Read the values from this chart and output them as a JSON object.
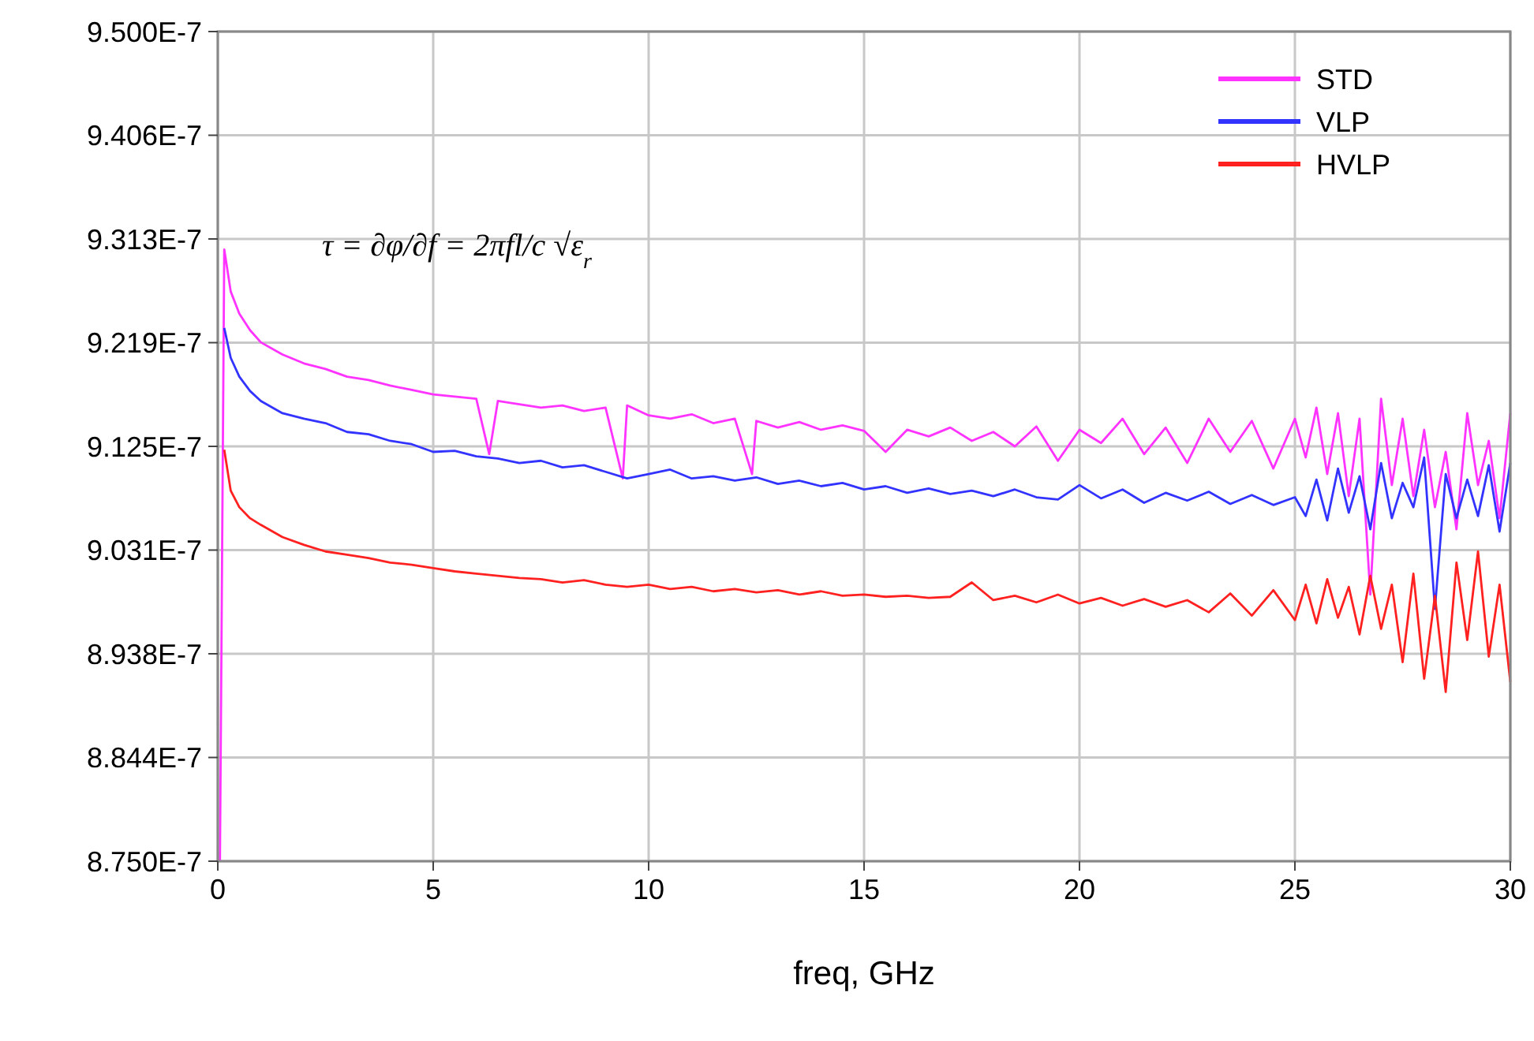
{
  "chart_data": {
    "type": "line",
    "xlabel": "freq, GHz",
    "xlim": [
      0,
      30
    ],
    "xticks": [
      0,
      5,
      10,
      15,
      20,
      25,
      30
    ],
    "ylim": [
      8.75e-07,
      9.5e-07
    ],
    "yticks": [
      {
        "value": 8.75e-07,
        "label": "8.750E-7"
      },
      {
        "value": 8.84375e-07,
        "label": "8.844E-7"
      },
      {
        "value": 8.9375e-07,
        "label": "8.938E-7"
      },
      {
        "value": 9.03125e-07,
        "label": "9.031E-7"
      },
      {
        "value": 9.125e-07,
        "label": "9.125E-7"
      },
      {
        "value": 9.21875e-07,
        "label": "9.219E-7"
      },
      {
        "value": 9.3125e-07,
        "label": "9.313E-7"
      },
      {
        "value": 9.40625e-07,
        "label": "9.406E-7"
      },
      {
        "value": 9.5e-07,
        "label": "9.500E-7"
      }
    ],
    "grid": true,
    "legend": "top right",
    "annotations": [
      "τ = ∂φ/∂f = 2πfl/c √ε$_{r}$"
    ],
    "series": [
      {
        "name": "STD",
        "color": "#ff33ff",
        "x": [
          0.05,
          0.15,
          0.3,
          0.5,
          0.75,
          1,
          1.5,
          2,
          2.5,
          3,
          3.5,
          4,
          4.5,
          5,
          5.5,
          6,
          6.3,
          6.5,
          7,
          7.5,
          8,
          8.5,
          9,
          9.4,
          9.5,
          10,
          10.5,
          11,
          11.5,
          12,
          12.4,
          12.5,
          13,
          13.5,
          14,
          14.5,
          15,
          15.5,
          16,
          16.5,
          17,
          17.5,
          18,
          18.5,
          19,
          19.5,
          20,
          20.5,
          21,
          21.5,
          22,
          22.5,
          23,
          23.5,
          24,
          24.5,
          25,
          25.25,
          25.5,
          25.75,
          26,
          26.25,
          26.5,
          26.75,
          27,
          27.25,
          27.5,
          27.75,
          28,
          28.25,
          28.5,
          28.75,
          29,
          29.25,
          29.5,
          29.75,
          30
        ],
        "values": [
          8.75e-07,
          9.303e-07,
          9.265e-07,
          9.245e-07,
          9.23e-07,
          9.219e-07,
          9.208e-07,
          9.2e-07,
          9.195e-07,
          9.188e-07,
          9.185e-07,
          9.18e-07,
          9.176e-07,
          9.172e-07,
          9.17e-07,
          9.168e-07,
          9.118e-07,
          9.166e-07,
          9.163e-07,
          9.16e-07,
          9.162e-07,
          9.157e-07,
          9.16e-07,
          9.096e-07,
          9.162e-07,
          9.153e-07,
          9.15e-07,
          9.154e-07,
          9.146e-07,
          9.15e-07,
          9.1e-07,
          9.148e-07,
          9.142e-07,
          9.147e-07,
          9.14e-07,
          9.144e-07,
          9.139e-07,
          9.12e-07,
          9.14e-07,
          9.134e-07,
          9.142e-07,
          9.13e-07,
          9.138e-07,
          9.125e-07,
          9.143e-07,
          9.112e-07,
          9.14e-07,
          9.128e-07,
          9.15e-07,
          9.118e-07,
          9.142e-07,
          9.11e-07,
          9.15e-07,
          9.12e-07,
          9.148e-07,
          9.105e-07,
          9.15e-07,
          9.115e-07,
          9.16e-07,
          9.1e-07,
          9.155e-07,
          9.08e-07,
          9.15e-07,
          8.991e-07,
          9.168e-07,
          9.09e-07,
          9.15e-07,
          9.08e-07,
          9.14e-07,
          9.07e-07,
          9.12e-07,
          9.05e-07,
          9.155e-07,
          9.09e-07,
          9.13e-07,
          9.06e-07,
          9.155e-07
        ]
      },
      {
        "name": "VLP",
        "color": "#3333ff",
        "x": [
          0.15,
          0.3,
          0.5,
          0.75,
          1,
          1.5,
          2,
          2.5,
          3,
          3.5,
          4,
          4.5,
          5,
          5.5,
          6,
          6.5,
          7,
          7.5,
          8,
          8.5,
          9,
          9.5,
          10,
          10.5,
          11,
          11.5,
          12,
          12.5,
          13,
          13.5,
          14,
          14.5,
          15,
          15.5,
          16,
          16.5,
          17,
          17.5,
          18,
          18.5,
          19,
          19.5,
          20,
          20.5,
          21,
          21.5,
          22,
          22.5,
          23,
          23.5,
          24,
          24.5,
          25,
          25.25,
          25.5,
          25.75,
          26,
          26.25,
          26.5,
          26.75,
          27,
          27.25,
          27.5,
          27.75,
          28,
          28.25,
          28.5,
          28.75,
          29,
          29.25,
          29.5,
          29.75,
          30
        ],
        "values": [
          9.232e-07,
          9.205e-07,
          9.188e-07,
          9.175e-07,
          9.166e-07,
          9.155e-07,
          9.15e-07,
          9.146e-07,
          9.138e-07,
          9.136e-07,
          9.13e-07,
          9.127e-07,
          9.12e-07,
          9.121e-07,
          9.116e-07,
          9.114e-07,
          9.11e-07,
          9.112e-07,
          9.106e-07,
          9.108e-07,
          9.102e-07,
          9.096e-07,
          9.1e-07,
          9.104e-07,
          9.096e-07,
          9.098e-07,
          9.094e-07,
          9.097e-07,
          9.091e-07,
          9.094e-07,
          9.089e-07,
          9.092e-07,
          9.086e-07,
          9.089e-07,
          9.083e-07,
          9.087e-07,
          9.082e-07,
          9.085e-07,
          9.08e-07,
          9.086e-07,
          9.079e-07,
          9.077e-07,
          9.09e-07,
          9.078e-07,
          9.086e-07,
          9.074e-07,
          9.083e-07,
          9.076e-07,
          9.084e-07,
          9.073e-07,
          9.081e-07,
          9.072e-07,
          9.079e-07,
          9.062e-07,
          9.095e-07,
          9.058e-07,
          9.105e-07,
          9.065e-07,
          9.098e-07,
          9.05e-07,
          9.11e-07,
          9.06e-07,
          9.092e-07,
          9.07e-07,
          9.115e-07,
          8.978e-07,
          9.1e-07,
          9.06e-07,
          9.095e-07,
          9.062e-07,
          9.108e-07,
          9.048e-07,
          9.11e-07
        ]
      },
      {
        "name": "HVLP",
        "color": "#ff2020",
        "x": [
          0.15,
          0.3,
          0.5,
          0.75,
          1,
          1.5,
          2,
          2.5,
          3,
          3.5,
          4,
          4.5,
          5,
          5.5,
          6,
          6.5,
          7,
          7.5,
          8,
          8.5,
          9,
          9.5,
          10,
          10.5,
          11,
          11.5,
          12,
          12.5,
          13,
          13.5,
          14,
          14.5,
          15,
          15.5,
          16,
          16.5,
          17,
          17.5,
          18,
          18.5,
          19,
          19.5,
          20,
          20.5,
          21,
          21.5,
          22,
          22.5,
          23,
          23.5,
          24,
          24.5,
          25,
          25.25,
          25.5,
          25.75,
          26,
          26.25,
          26.5,
          26.75,
          27,
          27.25,
          27.5,
          27.75,
          28,
          28.25,
          28.5,
          28.75,
          29,
          29.25,
          29.5,
          29.75,
          30
        ],
        "values": [
          9.122e-07,
          9.085e-07,
          9.07e-07,
          9.06e-07,
          9.054e-07,
          9.043e-07,
          9.036e-07,
          9.03e-07,
          9.027e-07,
          9.024e-07,
          9.02e-07,
          9.018e-07,
          9.015e-07,
          9.012e-07,
          9.01e-07,
          9.008e-07,
          9.006e-07,
          9.005e-07,
          9.002e-07,
          9.004e-07,
          9e-07,
          8.998e-07,
          9e-07,
          8.996e-07,
          8.998e-07,
          8.994e-07,
          8.996e-07,
          8.993e-07,
          8.995e-07,
          8.991e-07,
          8.994e-07,
          8.99e-07,
          8.991e-07,
          8.989e-07,
          8.99e-07,
          8.988e-07,
          8.989e-07,
          9.002e-07,
          8.986e-07,
          8.99e-07,
          8.984e-07,
          8.991e-07,
          8.983e-07,
          8.988e-07,
          8.981e-07,
          8.987e-07,
          8.98e-07,
          8.986e-07,
          8.975e-07,
          8.992e-07,
          8.972e-07,
          8.995e-07,
          8.968e-07,
          9e-07,
          8.965e-07,
          9.005e-07,
          8.97e-07,
          8.998e-07,
          8.955e-07,
          9.008e-07,
          8.96e-07,
          9e-07,
          8.93e-07,
          9.01e-07,
          8.915e-07,
          8.99e-07,
          8.903e-07,
          9.02e-07,
          8.95e-07,
          9.03e-07,
          8.935e-07,
          9e-07,
          8.912e-07
        ]
      }
    ]
  }
}
